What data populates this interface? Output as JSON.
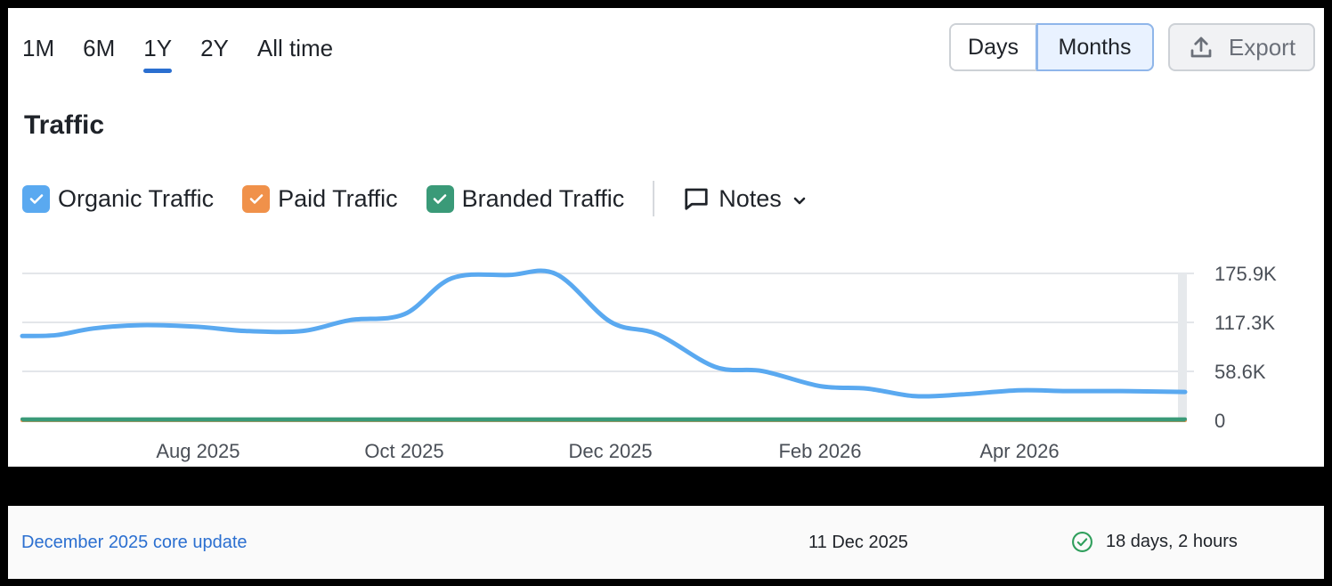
{
  "periods": [
    {
      "label": "1M",
      "active": false
    },
    {
      "label": "6M",
      "active": false
    },
    {
      "label": "1Y",
      "active": true
    },
    {
      "label": "2Y",
      "active": false
    },
    {
      "label": "All time",
      "active": false
    }
  ],
  "granularity": {
    "days_label": "Days",
    "months_label": "Months",
    "selected": "Months"
  },
  "export_label": "Export",
  "section_title": "Traffic",
  "legend": [
    {
      "label": "Organic Traffic",
      "color": "#5aa9f0",
      "checked": true
    },
    {
      "label": "Paid Traffic",
      "color": "#f0914a",
      "checked": true
    },
    {
      "label": "Branded Traffic",
      "color": "#3a9a78",
      "checked": true
    }
  ],
  "notes_label": "Notes",
  "chart_data": {
    "type": "line",
    "x_start": "2025-06-10",
    "x_end": "2026-05-20",
    "x_ticks": [
      {
        "date": "2025-08-01",
        "label": "Aug 2025"
      },
      {
        "date": "2025-10-01",
        "label": "Oct 2025"
      },
      {
        "date": "2025-12-01",
        "label": "Dec 2025"
      },
      {
        "date": "2026-02-01",
        "label": "Feb 2026"
      },
      {
        "date": "2026-04-01",
        "label": "Apr 2026"
      }
    ],
    "y_ticks": [
      {
        "value": 0,
        "label": "0"
      },
      {
        "value": 58.6,
        "label": "58.6K"
      },
      {
        "value": 117.3,
        "label": "117.3K"
      },
      {
        "value": 175.9,
        "label": "175.9K"
      }
    ],
    "ylim": [
      0,
      175.9
    ],
    "y_unit": "K",
    "grid": true,
    "series": [
      {
        "name": "Organic Traffic",
        "color": "#5aa9f0",
        "points": [
          {
            "date": "2025-06-10",
            "value": 101
          },
          {
            "date": "2025-06-20",
            "value": 102
          },
          {
            "date": "2025-07-01",
            "value": 110
          },
          {
            "date": "2025-07-15",
            "value": 114
          },
          {
            "date": "2025-08-01",
            "value": 112
          },
          {
            "date": "2025-08-15",
            "value": 107
          },
          {
            "date": "2025-09-01",
            "value": 107
          },
          {
            "date": "2025-09-15",
            "value": 120
          },
          {
            "date": "2025-10-01",
            "value": 127
          },
          {
            "date": "2025-10-15",
            "value": 170
          },
          {
            "date": "2025-11-01",
            "value": 174
          },
          {
            "date": "2025-11-15",
            "value": 175
          },
          {
            "date": "2025-12-01",
            "value": 118
          },
          {
            "date": "2025-12-15",
            "value": 103
          },
          {
            "date": "2026-01-01",
            "value": 64
          },
          {
            "date": "2026-01-15",
            "value": 59
          },
          {
            "date": "2026-02-01",
            "value": 41
          },
          {
            "date": "2026-02-15",
            "value": 38
          },
          {
            "date": "2026-03-01",
            "value": 29
          },
          {
            "date": "2026-03-15",
            "value": 31
          },
          {
            "date": "2026-04-01",
            "value": 36
          },
          {
            "date": "2026-04-15",
            "value": 35
          },
          {
            "date": "2026-05-01",
            "value": 35
          },
          {
            "date": "2026-05-20",
            "value": 34
          }
        ]
      },
      {
        "name": "Paid Traffic",
        "color": "#f0914a",
        "points": [
          {
            "date": "2025-06-10",
            "value": 0
          },
          {
            "date": "2026-05-20",
            "value": 0
          }
        ]
      },
      {
        "name": "Branded Traffic",
        "color": "#3a9a78",
        "points": [
          {
            "date": "2025-06-10",
            "value": 1.5
          },
          {
            "date": "2026-05-20",
            "value": 1.5
          }
        ]
      }
    ]
  },
  "update_row": {
    "link_label": "December 2025 core update",
    "date": "11 Dec 2025",
    "duration": "18 days, 2 hours"
  },
  "colors": {
    "accent": "#2b6fd0",
    "success": "#2e9e5b"
  }
}
